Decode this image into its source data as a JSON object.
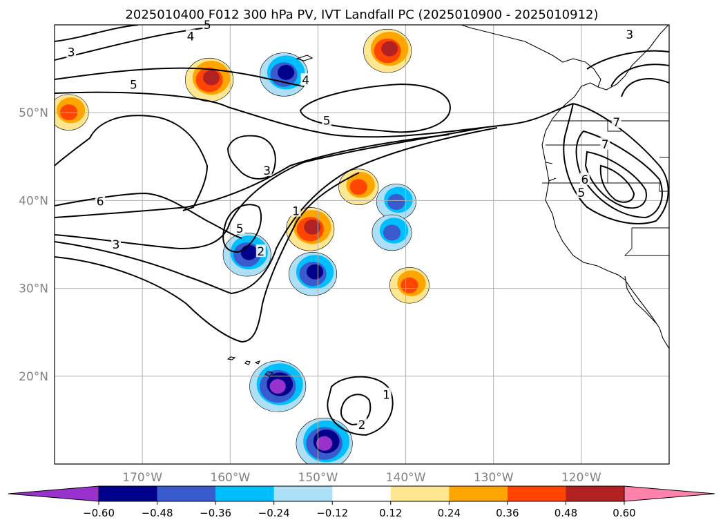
{
  "title": "2025010400 F012 300 hPa PV, IVT Landfall PC (2025010900 - 2025010912)",
  "map": {
    "lon_range": [
      -180,
      -110
    ],
    "lat_range": [
      10,
      60
    ],
    "projection": "PlateCarree",
    "gridlines": true,
    "lon_ticks": [
      {
        "lon": -170,
        "label": "170°W"
      },
      {
        "lon": -160,
        "label": "160°W"
      },
      {
        "lon": -150,
        "label": "150°W"
      },
      {
        "lon": -140,
        "label": "140°W"
      },
      {
        "lon": -130,
        "label": "130°W"
      },
      {
        "lon": -120,
        "label": "120°W"
      }
    ],
    "lat_ticks": [
      {
        "lat": 20,
        "label": "20°N"
      },
      {
        "lat": 30,
        "label": "30°N"
      },
      {
        "lat": 40,
        "label": "40°N"
      },
      {
        "lat": 50,
        "label": "50°N"
      }
    ],
    "tick_label_color": "#808080"
  },
  "contour_labels": [
    {
      "text": "3",
      "lon": -178.1,
      "lat": 56.9
    },
    {
      "text": "4",
      "lon": -164.5,
      "lat": 58.7
    },
    {
      "text": "5",
      "lon": -162.6,
      "lat": 60.0
    },
    {
      "text": "5",
      "lon": -171.0,
      "lat": 53.2
    },
    {
      "text": "4",
      "lon": -151.4,
      "lat": 53.7
    },
    {
      "text": "5",
      "lon": -149.0,
      "lat": 49.1
    },
    {
      "text": "3",
      "lon": -155.8,
      "lat": 43.4
    },
    {
      "text": "6",
      "lon": -174.8,
      "lat": 39.9
    },
    {
      "text": "5",
      "lon": -158.9,
      "lat": 36.8
    },
    {
      "text": "3",
      "lon": -173.0,
      "lat": 35.0
    },
    {
      "text": "2",
      "lon": -156.5,
      "lat": 34.2
    },
    {
      "text": "1",
      "lon": -152.5,
      "lat": 38.8
    },
    {
      "text": "1",
      "lon": -142.2,
      "lat": 17.9
    },
    {
      "text": "2",
      "lon": -145.0,
      "lat": 14.5
    },
    {
      "text": "3",
      "lon": -114.5,
      "lat": 58.9
    },
    {
      "text": "7",
      "lon": -116.0,
      "lat": 48.9
    },
    {
      "text": "7",
      "lon": -117.3,
      "lat": 46.4
    },
    {
      "text": "6",
      "lon": -119.6,
      "lat": 42.4
    },
    {
      "text": "5",
      "lon": -120.0,
      "lat": 40.9
    }
  ],
  "chart_data": {
    "type": "heatmap",
    "variable": "300 hPa PV, IVT Landfall PC",
    "colorbar": {
      "ticks": [
        "−0.60",
        "−0.48",
        "−0.36",
        "−0.24",
        "−0.12",
        "0.12",
        "0.24",
        "0.36",
        "0.48",
        "0.60"
      ],
      "bounds": [
        -0.6,
        -0.48,
        -0.36,
        -0.24,
        -0.12,
        0.12,
        0.24,
        0.36,
        0.48,
        0.6
      ],
      "colors": [
        "#9932CC",
        "#00008B",
        "#3A5BCD",
        "#00BFFF",
        "#ADE0F7",
        "#FFFFFF",
        "#FFE792",
        "#FFA500",
        "#FF4500",
        "#B22222",
        "#FF82AB"
      ],
      "extend": "both"
    },
    "shaded_regions": [
      {
        "sign": "negative",
        "peak": -0.48,
        "lon": -158.0,
        "lat": 34.0
      },
      {
        "sign": "negative",
        "peak": -0.48,
        "lon": -153.8,
        "lat": 54.5
      },
      {
        "sign": "negative",
        "peak": -0.48,
        "lon": -150.5,
        "lat": 31.8
      },
      {
        "sign": "negative",
        "peak": -0.6,
        "lon": -154.5,
        "lat": 19.0
      },
      {
        "sign": "negative",
        "peak": -0.6,
        "lon": -149.2,
        "lat": 12.5
      },
      {
        "sign": "negative",
        "peak": -0.36,
        "lon": -141.0,
        "lat": 40.0
      },
      {
        "sign": "negative",
        "peak": -0.36,
        "lon": -141.5,
        "lat": 36.5
      },
      {
        "sign": "positive",
        "peak": 0.48,
        "lon": -142.0,
        "lat": 57.2
      },
      {
        "sign": "positive",
        "peak": 0.48,
        "lon": -162.3,
        "lat": 53.9
      },
      {
        "sign": "positive",
        "peak": 0.48,
        "lon": -150.8,
        "lat": 36.9
      },
      {
        "sign": "positive",
        "peak": 0.36,
        "lon": -178.3,
        "lat": 50.2
      },
      {
        "sign": "positive",
        "peak": 0.36,
        "lon": -139.5,
        "lat": 30.5
      },
      {
        "sign": "positive",
        "peak": 0.36,
        "lon": -145.3,
        "lat": 41.7
      }
    ],
    "contours": {
      "field": "IVT landfall",
      "levels": [
        1,
        2,
        3,
        4,
        5,
        6,
        7
      ]
    }
  }
}
